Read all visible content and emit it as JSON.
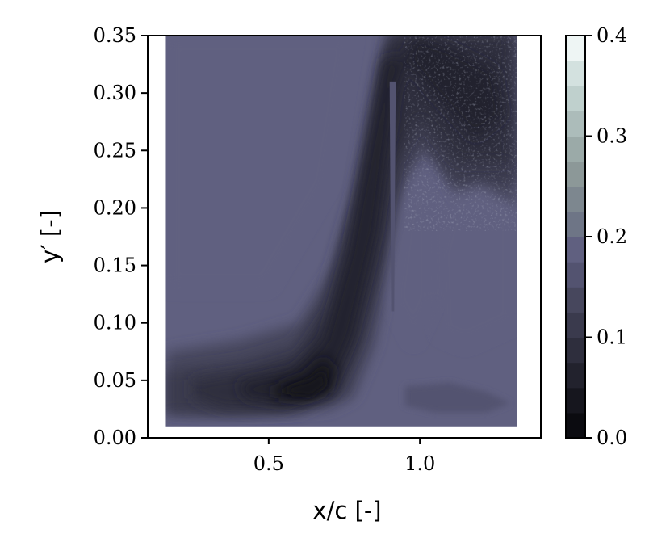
{
  "chart_data": {
    "type": "heatmap",
    "subtype": "filled-contour",
    "title": "",
    "xlabel": "x/c [-]",
    "ylabel": "y′ [-]",
    "xlim": [
      0.1,
      1.4
    ],
    "ylim": [
      0.0,
      0.35
    ],
    "x_ticks": [
      0.5,
      1.0
    ],
    "x_tick_labels": [
      "0.5",
      "1.0"
    ],
    "y_ticks": [
      0.0,
      0.05,
      0.1,
      0.15,
      0.2,
      0.25,
      0.3,
      0.35
    ],
    "y_tick_labels": [
      "0.00",
      "0.05",
      "0.10",
      "0.15",
      "0.20",
      "0.25",
      "0.30",
      "0.35"
    ],
    "data_extent": {
      "x": [
        0.16,
        1.32
      ],
      "y": [
        0.01,
        0.35
      ]
    },
    "grid": false,
    "colorbar": {
      "range": [
        0.0,
        0.4
      ],
      "ticks": [
        0.0,
        0.1,
        0.2,
        0.3,
        0.4
      ],
      "tick_labels": [
        "0.0",
        "0.1",
        "0.2",
        "0.3",
        "0.4"
      ],
      "levels": 16,
      "colormap": "bone",
      "colors": [
        "#0b0b10",
        "#16161e",
        "#22222d",
        "#2e2e3d",
        "#3a3a4d",
        "#47475d",
        "#535370",
        "#606080",
        "#6e7586",
        "#7d878f",
        "#8c9898",
        "#9baaa8",
        "#acbcba",
        "#bfd0cd",
        "#d3e1df",
        "#eef5f4"
      ]
    },
    "field_description": [
      {
        "region": "background",
        "value": 0.19
      },
      {
        "region": "near-wall band x 0.16–0.75, y 0.02–0.06",
        "value": 0.09
      },
      {
        "region": "core x 0.55–0.70, y ≈0.04",
        "value": 0.03
      },
      {
        "region": "inclined shear layer from (0.65,0.05) to (0.95,0.35)",
        "value": 0.07
      },
      {
        "region": "upper-right wake x 1.0–1.32, y 0.20–0.35",
        "value": 0.07
      },
      {
        "region": "lower-right band x 0.95–1.30, y 0.025–0.045",
        "value": 0.16
      },
      {
        "region": "right recirculation x 1.05–1.32, y 0.09–0.22",
        "value": 0.18
      }
    ]
  }
}
